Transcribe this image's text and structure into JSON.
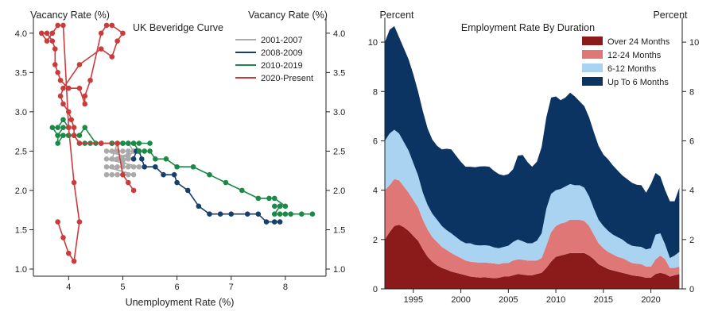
{
  "chart_data": [
    {
      "type": "scatter",
      "title": "UK Beveridge Curve",
      "xlabel": "Unemployment Rate (%)",
      "ylabel": "Vacancy Rate (%)",
      "ylabel_right": "Vacancy Rate (%)",
      "xlim": [
        3.35,
        8.75
      ],
      "ylim": [
        0.95,
        4.2
      ],
      "x_ticks": [
        "4",
        "5",
        "6",
        "7",
        "8"
      ],
      "y_ticks": [
        "1.0",
        "1.5",
        "2.0",
        "2.5",
        "3.0",
        "3.5",
        "4.0"
      ],
      "legend_position": "top-right",
      "series": [
        {
          "name": "2001-2007",
          "color": "#aaaaaa",
          "x": [
            4.7,
            4.8,
            4.9,
            5.0,
            5.1,
            5.2,
            4.7,
            4.8,
            4.9,
            5.0,
            5.1,
            5.2,
            5.3,
            4.7,
            4.8,
            4.9,
            5.0,
            5.1,
            5.2,
            4.7,
            4.8,
            4.9,
            5.0,
            5.1,
            5.2,
            5.3,
            4.8,
            4.9,
            5.0,
            5.1,
            5.2,
            5.0,
            5.1
          ],
          "y": [
            2.2,
            2.2,
            2.2,
            2.2,
            2.2,
            2.2,
            2.3,
            2.3,
            2.3,
            2.3,
            2.3,
            2.3,
            2.3,
            2.4,
            2.4,
            2.4,
            2.4,
            2.4,
            2.4,
            2.5,
            2.5,
            2.5,
            2.5,
            2.5,
            2.5,
            2.5,
            2.4,
            2.6,
            2.6,
            2.6,
            2.5,
            2.35,
            2.45
          ]
        },
        {
          "name": "2008-2009",
          "color": "#173f6b",
          "x": [
            5.2,
            5.25,
            5.3,
            5.35,
            5.4,
            5.6,
            5.75,
            5.95,
            6.0,
            6.2,
            6.4,
            6.6,
            6.8,
            7.0,
            7.3,
            7.5,
            7.65,
            7.8,
            7.9
          ],
          "y": [
            2.4,
            2.5,
            2.5,
            2.4,
            2.3,
            2.3,
            2.2,
            2.2,
            2.1,
            2.0,
            1.8,
            1.7,
            1.7,
            1.7,
            1.7,
            1.7,
            1.6,
            1.6,
            1.6
          ]
        },
        {
          "name": "2010-2019",
          "color": "#1a8a46",
          "x": [
            8.5,
            8.3,
            8.1,
            8.0,
            7.9,
            7.8,
            7.9,
            7.8,
            7.9,
            8.0,
            7.8,
            7.7,
            7.5,
            7.2,
            6.9,
            6.6,
            6.3,
            6.0,
            5.8,
            5.6,
            5.5,
            5.4,
            5.3,
            5.2,
            5.1,
            5.0,
            4.9,
            4.8,
            4.6,
            4.4,
            4.3,
            4.2,
            4.1,
            4.0,
            3.9,
            3.8,
            3.8,
            3.7,
            3.8,
            3.9,
            4.0,
            3.9,
            3.8,
            4.0,
            4.2,
            4.3,
            4.5,
            4.8,
            5.0,
            5.1,
            5.2,
            5.3,
            5.5
          ],
          "y": [
            1.7,
            1.7,
            1.7,
            1.7,
            1.7,
            1.7,
            1.8,
            1.8,
            1.8,
            1.8,
            1.9,
            1.9,
            1.9,
            2.0,
            2.1,
            2.2,
            2.3,
            2.3,
            2.4,
            2.4,
            2.5,
            2.5,
            2.5,
            2.6,
            2.6,
            2.6,
            2.6,
            2.6,
            2.6,
            2.6,
            2.6,
            2.6,
            2.7,
            2.7,
            2.7,
            2.6,
            2.7,
            2.8,
            2.8,
            2.9,
            2.8,
            2.8,
            2.7,
            2.7,
            2.7,
            2.8,
            2.6,
            2.6,
            2.6,
            2.6,
            2.6,
            2.6,
            2.6
          ]
        },
        {
          "name": "2020-Present",
          "color": "#cc3b3b",
          "x": [
            5.2,
            5.1,
            5.0,
            4.9,
            4.6,
            4.2,
            4.1,
            4.1,
            4.05,
            4.0,
            3.9,
            3.85,
            3.9,
            4.2,
            4.6,
            4.8,
            4.9,
            5.0,
            4.8,
            4.7,
            4.6,
            4.4,
            4.3,
            4.3,
            4.2,
            4.0,
            3.85,
            3.8,
            3.75,
            3.75,
            3.7,
            3.6,
            3.5,
            3.6,
            3.7,
            3.8,
            3.9,
            4.0,
            4.1,
            4.2,
            4.1,
            4.0,
            3.9,
            3.8
          ],
          "y": [
            2.0,
            2.1,
            2.2,
            2.6,
            2.6,
            2.6,
            2.7,
            2.8,
            2.9,
            3.0,
            3.1,
            3.2,
            3.3,
            3.6,
            3.8,
            3.7,
            3.9,
            4.0,
            4.1,
            4.1,
            4.0,
            3.4,
            3.2,
            3.1,
            3.3,
            3.3,
            3.4,
            3.5,
            3.6,
            3.8,
            3.9,
            4.0,
            4.0,
            3.9,
            4.0,
            4.1,
            4.1,
            2.8,
            2.1,
            1.6,
            1.1,
            1.2,
            1.4,
            1.6
          ]
        }
      ]
    },
    {
      "type": "area",
      "stacked": true,
      "title": "Employment Rate By Duration",
      "ylabel": "Percent",
      "ylabel_right": "Percent",
      "xlim": [
        1992,
        2023.3
      ],
      "ylim": [
        0,
        11
      ],
      "x_ticks": [
        "1995",
        "2000",
        "2005",
        "2010",
        "2015",
        "2020"
      ],
      "y_ticks": [
        "0",
        "2",
        "4",
        "6",
        "8",
        "10"
      ],
      "legend_position": "top-right",
      "x": [
        1992.0,
        1992.5,
        1993.0,
        1993.5,
        1994.0,
        1994.5,
        1995.0,
        1995.5,
        1996.0,
        1996.5,
        1997.0,
        1997.5,
        1998.0,
        1998.5,
        1999.0,
        1999.5,
        2000.0,
        2000.5,
        2001.0,
        2001.5,
        2002.0,
        2002.5,
        2003.0,
        2003.5,
        2004.0,
        2004.5,
        2005.0,
        2005.5,
        2006.0,
        2006.5,
        2007.0,
        2007.5,
        2008.0,
        2008.5,
        2009.0,
        2009.5,
        2010.0,
        2010.5,
        2011.0,
        2011.5,
        2012.0,
        2012.5,
        2013.0,
        2013.5,
        2014.0,
        2014.5,
        2015.0,
        2015.5,
        2016.0,
        2016.5,
        2017.0,
        2017.5,
        2018.0,
        2018.5,
        2019.0,
        2019.5,
        2020.0,
        2020.5,
        2021.0,
        2021.5,
        2022.0,
        2022.5,
        2023.0
      ],
      "series": [
        {
          "name": "Over 24 Months",
          "color": "#8b1a1a",
          "values": [
            2.0,
            2.3,
            2.55,
            2.6,
            2.5,
            2.35,
            2.15,
            1.95,
            1.6,
            1.3,
            1.1,
            0.95,
            0.85,
            0.78,
            0.7,
            0.65,
            0.6,
            0.55,
            0.5,
            0.48,
            0.46,
            0.47,
            0.45,
            0.43,
            0.45,
            0.5,
            0.5,
            0.55,
            0.6,
            0.58,
            0.55,
            0.55,
            0.6,
            0.65,
            0.85,
            1.1,
            1.3,
            1.35,
            1.4,
            1.45,
            1.45,
            1.45,
            1.45,
            1.35,
            1.2,
            1.0,
            0.9,
            0.8,
            0.75,
            0.7,
            0.65,
            0.6,
            0.55,
            0.52,
            0.5,
            0.45,
            0.45,
            0.6,
            0.65,
            0.6,
            0.5,
            0.55,
            0.6
          ]
        },
        {
          "name": "12-24 Months",
          "color": "#e07777",
          "values": [
            2.0,
            1.9,
            1.9,
            1.8,
            1.65,
            1.55,
            1.45,
            1.35,
            1.2,
            1.1,
            1.0,
            0.95,
            0.85,
            0.8,
            0.75,
            0.7,
            0.65,
            0.6,
            0.6,
            0.6,
            0.6,
            0.6,
            0.6,
            0.6,
            0.55,
            0.55,
            0.55,
            0.6,
            0.6,
            0.6,
            0.6,
            0.6,
            0.55,
            0.6,
            0.9,
            1.2,
            1.25,
            1.3,
            1.3,
            1.35,
            1.35,
            1.35,
            1.3,
            1.2,
            1.0,
            0.85,
            0.75,
            0.7,
            0.65,
            0.6,
            0.6,
            0.55,
            0.5,
            0.5,
            0.5,
            0.45,
            0.45,
            0.6,
            0.7,
            0.6,
            0.35,
            0.3,
            0.3
          ]
        },
        {
          "name": "6-12 Months",
          "color": "#a9d3f0",
          "values": [
            2.0,
            2.1,
            2.0,
            1.9,
            1.8,
            1.7,
            1.5,
            1.3,
            1.1,
            1.0,
            0.95,
            0.9,
            0.85,
            0.8,
            0.8,
            0.75,
            0.7,
            0.7,
            0.75,
            0.7,
            0.7,
            0.7,
            0.7,
            0.65,
            0.65,
            0.65,
            0.7,
            0.75,
            0.8,
            0.75,
            0.7,
            0.7,
            0.8,
            1.0,
            1.5,
            1.55,
            1.45,
            1.4,
            1.45,
            1.45,
            1.4,
            1.4,
            1.35,
            1.2,
            1.05,
            0.95,
            0.9,
            0.85,
            0.8,
            0.8,
            0.75,
            0.7,
            0.7,
            0.7,
            0.7,
            0.7,
            0.75,
            1.0,
            0.9,
            0.6,
            0.4,
            0.5,
            0.6
          ]
        },
        {
          "name": "Up To 6 Months",
          "color": "#0c3463",
          "values": [
            4.0,
            4.2,
            4.2,
            3.9,
            3.8,
            3.7,
            3.6,
            3.4,
            3.3,
            3.1,
            3.0,
            3.0,
            3.1,
            3.3,
            3.4,
            3.3,
            3.2,
            3.1,
            3.1,
            3.15,
            3.2,
            3.2,
            3.2,
            3.1,
            3.0,
            2.9,
            2.9,
            2.95,
            3.4,
            3.5,
            3.3,
            3.1,
            3.2,
            3.5,
            3.7,
            3.9,
            3.8,
            3.6,
            3.6,
            3.7,
            3.6,
            3.4,
            3.3,
            3.2,
            3.1,
            3.0,
            2.9,
            2.9,
            2.8,
            2.7,
            2.6,
            2.6,
            2.55,
            2.5,
            2.5,
            2.3,
            2.6,
            2.5,
            2.3,
            2.2,
            2.3,
            2.2,
            2.6
          ]
        }
      ]
    }
  ]
}
